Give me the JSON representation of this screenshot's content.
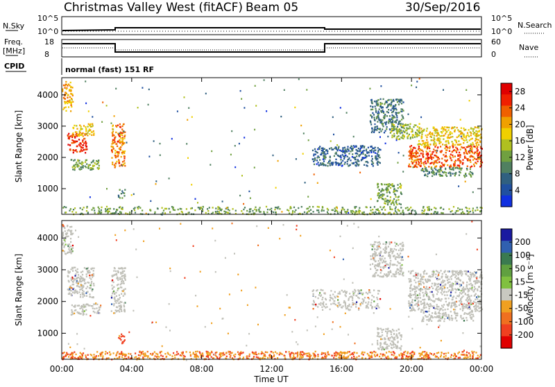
{
  "header": {
    "station": "Christmas Valley West (fitACF)",
    "beam": "Beam 05",
    "date": "30/Sep/2016"
  },
  "panels": {
    "nsky": {
      "left_label": "N.Sky",
      "left_ticks": [
        "10^5",
        "10^0"
      ],
      "right_ticks": [
        "10^5",
        "10^0"
      ],
      "right_label": "N.Search"
    },
    "freq": {
      "left_label_1": "Freq.",
      "left_label_2": "[MHz]",
      "left_ticks": [
        "18",
        "8"
      ],
      "right_ticks": [
        "60",
        "0"
      ],
      "right_label": "Nave"
    },
    "cpid": {
      "label": "CPID",
      "text": "normal (fast) 151 RF"
    }
  },
  "colors": {
    "power": [
      "#1030e0",
      "#2050a0",
      "#306080",
      "#508060",
      "#70a040",
      "#b0c020",
      "#f0d000",
      "#f0a000",
      "#f06000",
      "#f02000",
      "#e00000"
    ],
    "velocity": [
      "#1a1aa0",
      "#3060b0",
      "#3a7a50",
      "#60a040",
      "#80c040",
      "#c8c8c0",
      "#f0a020",
      "#f07020",
      "#f04020",
      "#e00000"
    ],
    "ground_scatter": "#c0c0b8"
  },
  "chart_data": [
    {
      "type": "heatmap",
      "title": "",
      "xlabel": "Time UT",
      "ylabel": "Slant Range [km]",
      "x_ticks": [
        "00:00",
        "04:00",
        "08:00",
        "12:00",
        "16:00",
        "20:00",
        "00:00"
      ],
      "y_ticks": [
        "1000",
        "2000",
        "3000",
        "4000"
      ],
      "xlim_hours": [
        0,
        24
      ],
      "ylim_km": [
        180,
        4550
      ],
      "colorbar_label": "Power [dB]",
      "colorbar_ticks": [
        "4",
        "8",
        "12",
        "16",
        "20",
        "24",
        "28"
      ],
      "colorbar_range": [
        0,
        30
      ],
      "regions": [
        {
          "t": [
            0.0,
            0.6
          ],
          "r": [
            3500,
            4450
          ],
          "v": 20
        },
        {
          "t": [
            0.3,
            1.4
          ],
          "r": [
            2150,
            2800
          ],
          "v": 26
        },
        {
          "t": [
            0.6,
            1.8
          ],
          "r": [
            2700,
            3100
          ],
          "v": 18
        },
        {
          "t": [
            0.5,
            2.2
          ],
          "r": [
            1600,
            1950
          ],
          "v": 12
        },
        {
          "t": [
            2.8,
            3.6
          ],
          "r": [
            1700,
            3100
          ],
          "v": 22
        },
        {
          "t": [
            3.2,
            3.6
          ],
          "r": [
            700,
            1000
          ],
          "v": 10
        },
        {
          "t": [
            0.0,
            24.0
          ],
          "r": [
            200,
            450
          ],
          "v": 12
        },
        {
          "t": [
            14.3,
            18.2
          ],
          "r": [
            1750,
            2400
          ],
          "v": 6
        },
        {
          "t": [
            17.6,
            19.5
          ],
          "r": [
            2800,
            3900
          ],
          "v": 8
        },
        {
          "t": [
            18.8,
            20.5
          ],
          "r": [
            2600,
            3100
          ],
          "v": 14
        },
        {
          "t": [
            19.8,
            24.0
          ],
          "r": [
            1700,
            2400
          ],
          "v": 24
        },
        {
          "t": [
            20.3,
            24.0
          ],
          "r": [
            2400,
            3000
          ],
          "v": 18
        },
        {
          "t": [
            20.5,
            23.5
          ],
          "r": [
            1400,
            1700
          ],
          "v": 10
        },
        {
          "t": [
            18.0,
            19.4
          ],
          "r": [
            500,
            1200
          ],
          "v": 12
        }
      ]
    },
    {
      "type": "heatmap",
      "title": "",
      "xlabel": "Time UT",
      "ylabel": "Slant Range [km]",
      "x_ticks": [
        "00:00",
        "04:00",
        "08:00",
        "12:00",
        "16:00",
        "20:00",
        "00:00"
      ],
      "y_ticks": [
        "1000",
        "2000",
        "3000",
        "4000"
      ],
      "xlim_hours": [
        0,
        24
      ],
      "ylim_km": [
        180,
        4550
      ],
      "colorbar_label": "Velocity [m s⁻¹]",
      "colorbar_ticks": [
        "200",
        "100",
        "50",
        "15",
        "-15",
        "-50",
        "-100",
        "-200"
      ],
      "colorbar_range": [
        -250,
        250
      ],
      "regions": [
        {
          "t": [
            0.0,
            0.6
          ],
          "r": [
            3500,
            4450
          ],
          "v": 0
        },
        {
          "t": [
            0.3,
            1.8
          ],
          "r": [
            2150,
            3100
          ],
          "v": 0
        },
        {
          "t": [
            0.5,
            2.2
          ],
          "r": [
            1600,
            1950
          ],
          "v": 0
        },
        {
          "t": [
            2.8,
            3.6
          ],
          "r": [
            1700,
            3100
          ],
          "v": 0
        },
        {
          "t": [
            3.2,
            3.6
          ],
          "r": [
            700,
            1000
          ],
          "v": -70
        },
        {
          "t": [
            0.0,
            24.0
          ],
          "r": [
            200,
            450
          ],
          "v": -40
        },
        {
          "t": [
            14.3,
            18.2
          ],
          "r": [
            1750,
            2400
          ],
          "v": 0
        },
        {
          "t": [
            17.6,
            19.5
          ],
          "r": [
            2800,
            3900
          ],
          "v": 0
        },
        {
          "t": [
            19.8,
            24.0
          ],
          "r": [
            1700,
            3000
          ],
          "v": 0
        },
        {
          "t": [
            20.5,
            23.5
          ],
          "r": [
            1400,
            1700
          ],
          "v": 0
        },
        {
          "t": [
            18.0,
            19.4
          ],
          "r": [
            500,
            1200
          ],
          "v": 0
        }
      ]
    }
  ]
}
